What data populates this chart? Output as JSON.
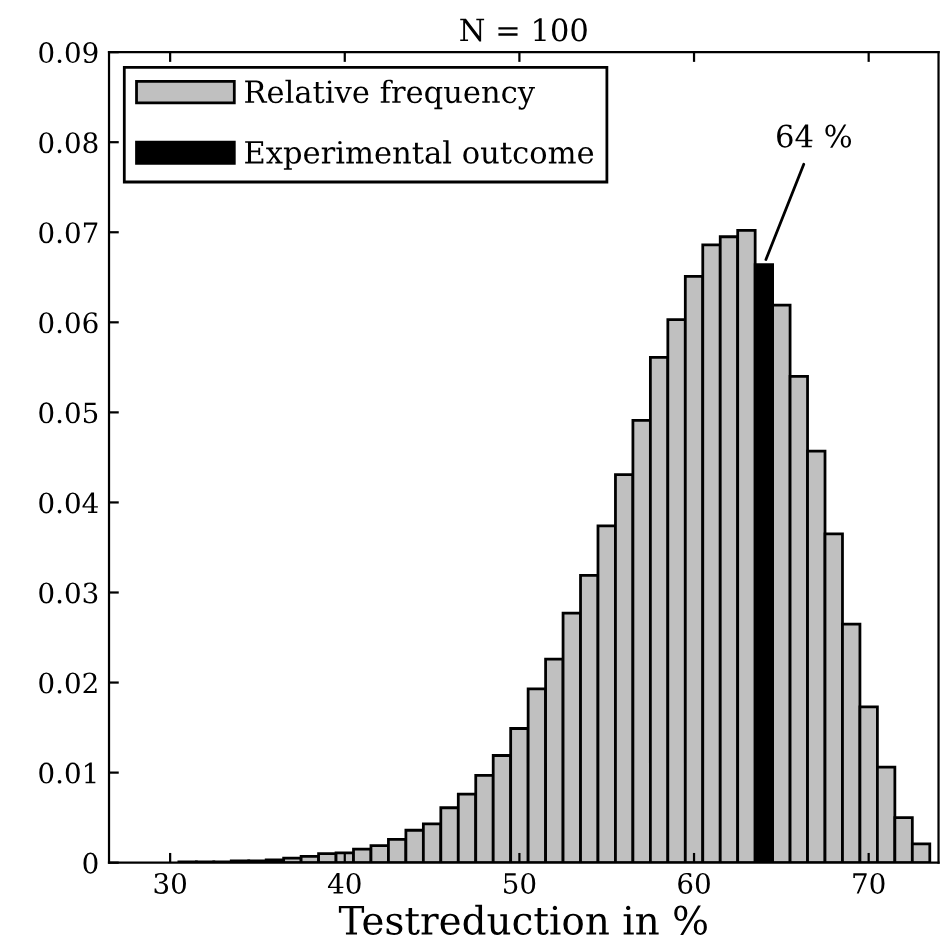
{
  "chart_data": {
    "type": "histogram",
    "title": "N = 100",
    "xlabel": "Testreduction in %",
    "bins": [
      30.5,
      31.5,
      32.5,
      33.5,
      34.5,
      35.5,
      36.5,
      37.5,
      38.5,
      39.5,
      40.5,
      41.5,
      42.5,
      43.5,
      44.5,
      45.5,
      46.5,
      47.5,
      48.5,
      49.5,
      50.5,
      51.5,
      52.5,
      53.5,
      54.5,
      55.5,
      56.5,
      57.5,
      58.5,
      59.5,
      60.5,
      61.5,
      62.5,
      63.5,
      64.5,
      65.5,
      66.5,
      67.5,
      68.5,
      69.5,
      70.5,
      71.5,
      72.5,
      73.5
    ],
    "series": [
      {
        "name": "Relative frequency",
        "color": "#c0c0c0",
        "values": [
          0.0001,
          0.0001,
          0.0001,
          0.0002,
          0.0002,
          0.0003,
          0.0005,
          0.0007,
          0.001,
          0.0011,
          0.0015,
          0.0019,
          0.0026,
          0.0036,
          0.0043,
          0.0061,
          0.0076,
          0.0097,
          0.0119,
          0.0149,
          0.0193,
          0.0226,
          0.0277,
          0.0319,
          0.0374,
          0.0431,
          0.0491,
          0.0561,
          0.0603,
          0.0651,
          0.0686,
          0.0695,
          0.0702,
          null,
          0.0619,
          0.054,
          0.0457,
          0.0365,
          0.0265,
          0.0173,
          0.0106,
          0.005,
          0.0021
        ]
      },
      {
        "name": "Experimental outcome",
        "color": "#000000",
        "values": [
          null,
          null,
          null,
          null,
          null,
          null,
          null,
          null,
          null,
          null,
          null,
          null,
          null,
          null,
          null,
          null,
          null,
          null,
          null,
          null,
          null,
          null,
          null,
          null,
          null,
          null,
          null,
          null,
          null,
          null,
          null,
          null,
          null,
          0.0664,
          null,
          null,
          null,
          null,
          null,
          null,
          null,
          null,
          null
        ]
      }
    ],
    "annotations": [
      {
        "text": "64 %",
        "x": 64,
        "y": 0.0664
      }
    ],
    "xlim": [
      26.5,
      74
    ],
    "xticks": [
      30,
      40,
      50,
      60,
      70
    ],
    "ylim": [
      0,
      0.09
    ],
    "yticks": [
      0,
      0.01,
      0.02,
      0.03,
      0.04,
      0.05,
      0.06,
      0.07,
      0.08,
      0.09
    ],
    "legend": "top left",
    "grid": false
  }
}
